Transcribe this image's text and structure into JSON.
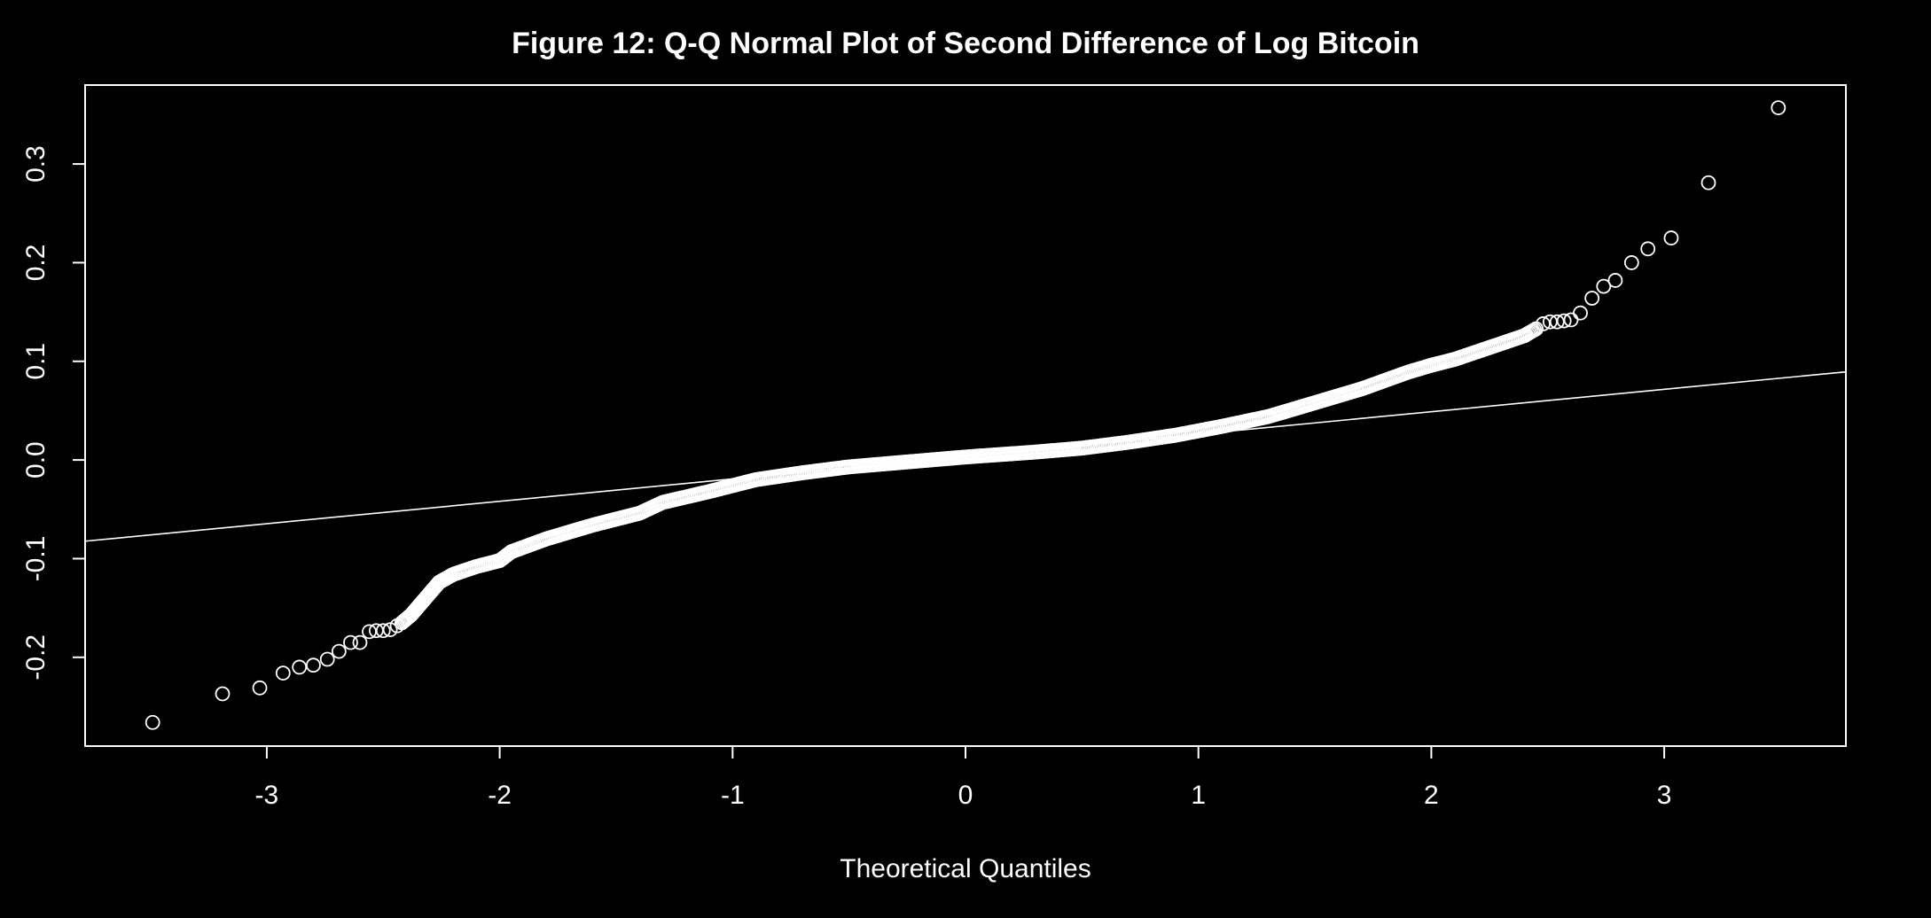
{
  "chart_data": {
    "type": "scatter",
    "title": "Figure  12: Q-Q Normal Plot of Second Difference of Log Bitcoin",
    "xlabel": "Theoretical Quantiles",
    "ylabel": "",
    "xlim": [
      -3.78,
      3.78
    ],
    "ylim": [
      -0.29,
      0.38
    ],
    "x_ticks": [
      -3,
      -2,
      -1,
      0,
      1,
      2,
      3
    ],
    "x_tick_labels": [
      "-3",
      "-2",
      "-1",
      "0",
      "1",
      "2",
      "3"
    ],
    "y_ticks": [
      -0.2,
      -0.1,
      0.0,
      0.1,
      0.2,
      0.3
    ],
    "y_tick_labels": [
      "-0.2",
      "-0.1",
      "0.0",
      "0.1",
      "0.2",
      "0.3"
    ],
    "grid": false,
    "marker": "open-circle",
    "colors": {
      "background": "#000000",
      "foreground": "#ffffff"
    },
    "reference_line": {
      "intercept": 0.0035,
      "slope": 0.0227
    },
    "outlier_points": [
      {
        "x": -3.49,
        "y": -0.266
      },
      {
        "x": -3.19,
        "y": -0.237
      },
      {
        "x": -3.03,
        "y": -0.231
      },
      {
        "x": -2.93,
        "y": -0.216
      },
      {
        "x": -2.86,
        "y": -0.21
      },
      {
        "x": -2.8,
        "y": -0.208
      },
      {
        "x": -2.74,
        "y": -0.202
      },
      {
        "x": -2.69,
        "y": -0.194
      },
      {
        "x": -2.64,
        "y": -0.185
      },
      {
        "x": -2.6,
        "y": -0.185
      },
      {
        "x": -2.56,
        "y": -0.174
      },
      {
        "x": -2.53,
        "y": -0.173
      },
      {
        "x": -2.5,
        "y": -0.173
      },
      {
        "x": -2.47,
        "y": -0.172
      },
      {
        "x": -2.44,
        "y": -0.168
      },
      {
        "x": 2.48,
        "y": 0.138
      },
      {
        "x": 2.51,
        "y": 0.14
      },
      {
        "x": 2.54,
        "y": 0.14
      },
      {
        "x": 2.57,
        "y": 0.141
      },
      {
        "x": 2.6,
        "y": 0.142
      },
      {
        "x": 2.64,
        "y": 0.149
      },
      {
        "x": 2.69,
        "y": 0.164
      },
      {
        "x": 2.74,
        "y": 0.176
      },
      {
        "x": 2.79,
        "y": 0.182
      },
      {
        "x": 2.86,
        "y": 0.2
      },
      {
        "x": 2.93,
        "y": 0.214
      },
      {
        "x": 3.03,
        "y": 0.225
      },
      {
        "x": 3.19,
        "y": 0.281
      },
      {
        "x": 3.49,
        "y": 0.357
      }
    ],
    "curve_points": [
      {
        "x": -2.42,
        "y": -0.165
      },
      {
        "x": -2.38,
        "y": -0.157
      },
      {
        "x": -2.34,
        "y": -0.146
      },
      {
        "x": -2.3,
        "y": -0.135
      },
      {
        "x": -2.26,
        "y": -0.124
      },
      {
        "x": -2.2,
        "y": -0.116
      },
      {
        "x": -2.1,
        "y": -0.108
      },
      {
        "x": -2.0,
        "y": -0.102
      },
      {
        "x": -1.95,
        "y": -0.093
      },
      {
        "x": -1.8,
        "y": -0.08
      },
      {
        "x": -1.6,
        "y": -0.066
      },
      {
        "x": -1.4,
        "y": -0.054
      },
      {
        "x": -1.3,
        "y": -0.043
      },
      {
        "x": -1.1,
        "y": -0.032
      },
      {
        "x": -0.9,
        "y": -0.02
      },
      {
        "x": -0.7,
        "y": -0.013
      },
      {
        "x": -0.5,
        "y": -0.007
      },
      {
        "x": -0.3,
        "y": -0.003
      },
      {
        "x": 0.0,
        "y": 0.003
      },
      {
        "x": 0.3,
        "y": 0.008
      },
      {
        "x": 0.5,
        "y": 0.012
      },
      {
        "x": 0.7,
        "y": 0.018
      },
      {
        "x": 0.9,
        "y": 0.025
      },
      {
        "x": 1.1,
        "y": 0.034
      },
      {
        "x": 1.3,
        "y": 0.044
      },
      {
        "x": 1.5,
        "y": 0.058
      },
      {
        "x": 1.7,
        "y": 0.072
      },
      {
        "x": 1.9,
        "y": 0.089
      },
      {
        "x": 2.0,
        "y": 0.096
      },
      {
        "x": 2.1,
        "y": 0.102
      },
      {
        "x": 2.2,
        "y": 0.11
      },
      {
        "x": 2.3,
        "y": 0.118
      },
      {
        "x": 2.4,
        "y": 0.126
      },
      {
        "x": 2.45,
        "y": 0.133
      }
    ]
  }
}
